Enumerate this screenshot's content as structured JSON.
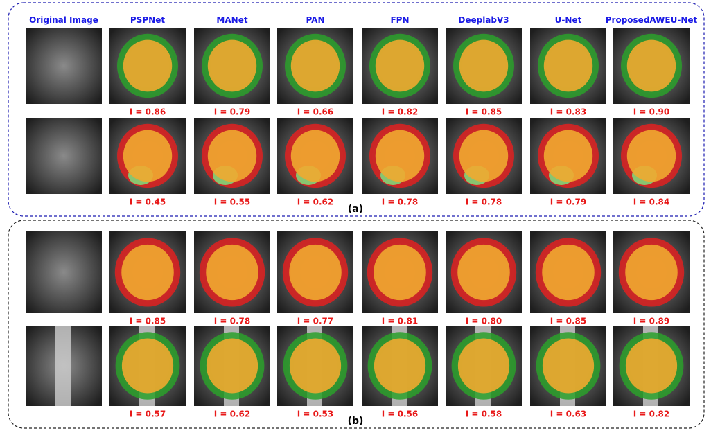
{
  "columns": [
    "Original Image",
    "PSPNet",
    "MANet",
    "PAN",
    "FPN",
    "DeeplabV3",
    "U-Net",
    "ProposedAWEU-Net"
  ],
  "panels": [
    {
      "label": "(a)",
      "rows": [
        {
          "scores": [
            "I = 0.86",
            "I = 0.79",
            "I = 0.66",
            "I = 0.82",
            "I = 0.85",
            "I = 0.83",
            "I = 0.90"
          ]
        },
        {
          "scores": [
            "I = 0.45",
            "I = 0.55",
            "I = 0.62",
            "I = 0.78",
            "I = 0.78",
            "I = 0.79",
            "I = 0.84"
          ]
        }
      ]
    },
    {
      "label": "(b)",
      "rows": [
        {
          "scores": [
            "I = 0.85",
            "I = 0.78",
            "I = 0.77",
            "I = 0.81",
            "I = 0.80",
            "I = 0.85",
            "I = 0.89"
          ]
        },
        {
          "scores": [
            "I = 0.57",
            "I = 0.62",
            "I = 0.53",
            "I = 0.56",
            "I = 0.58",
            "I = 0.63",
            "I = 0.82"
          ]
        }
      ]
    }
  ]
}
